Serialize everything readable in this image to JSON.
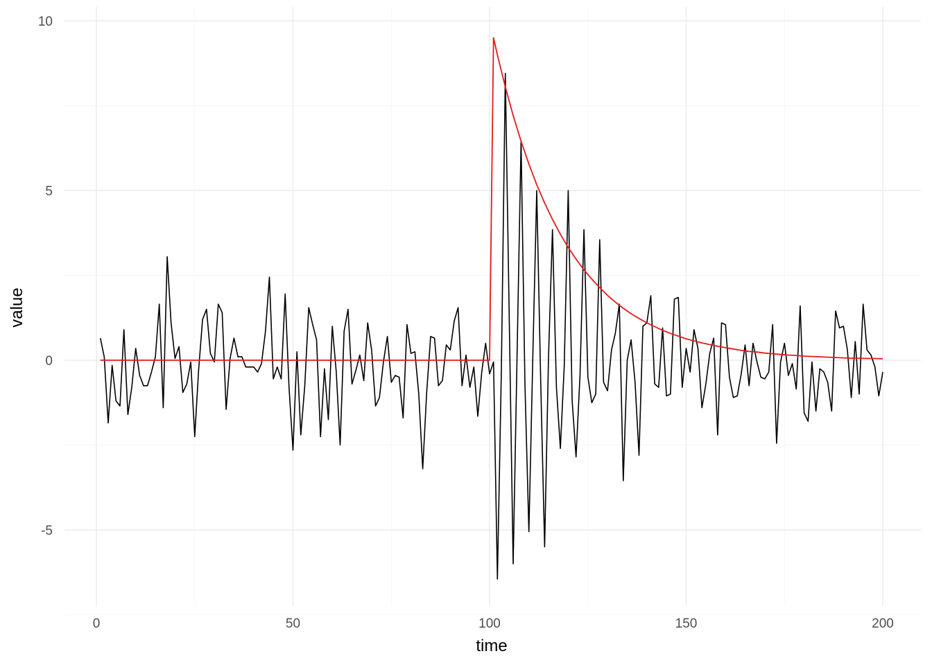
{
  "chart_data": {
    "type": "line",
    "title": "",
    "xlabel": "time",
    "ylabel": "value",
    "xlim": [
      -5,
      206
    ],
    "ylim": [
      -7.0,
      10.3
    ],
    "x_ticks": [
      0,
      50,
      100,
      150,
      200
    ],
    "y_ticks": [
      -5,
      0,
      5,
      10
    ],
    "x_minor_ticks": [
      25,
      75,
      125,
      175
    ],
    "y_minor_ticks": [
      -7.5,
      -2.5,
      2.5,
      7.5
    ],
    "grid": true,
    "legend": "none",
    "colors": {
      "noisy": "#000000",
      "decay": "#e41a1c"
    },
    "series": [
      {
        "color": "#000000",
        "x": [
          1,
          2,
          3,
          4,
          5,
          6,
          7,
          8,
          9,
          10,
          11,
          12,
          13,
          14,
          15,
          16,
          17,
          18,
          19,
          20,
          21,
          22,
          23,
          24,
          25,
          26,
          27,
          28,
          29,
          30,
          31,
          32,
          33,
          34,
          35,
          36,
          37,
          38,
          39,
          40,
          41,
          42,
          43,
          44,
          45,
          46,
          47,
          48,
          49,
          50,
          51,
          52,
          53,
          54,
          55,
          56,
          57,
          58,
          59,
          60,
          61,
          62,
          63,
          64,
          65,
          66,
          67,
          68,
          69,
          70,
          71,
          72,
          73,
          74,
          75,
          76,
          77,
          78,
          79,
          80,
          81,
          82,
          83,
          84,
          85,
          86,
          87,
          88,
          89,
          90,
          91,
          92,
          93,
          94,
          95,
          96,
          97,
          98,
          99,
          100,
          101,
          102,
          103,
          104,
          105,
          106,
          107,
          108,
          109,
          110,
          111,
          112,
          113,
          114,
          115,
          116,
          117,
          118,
          119,
          120,
          121,
          122,
          123,
          124,
          125,
          126,
          127,
          128,
          129,
          130,
          131,
          132,
          133,
          134,
          135,
          136,
          137,
          138,
          139,
          140,
          141,
          142,
          143,
          144,
          145,
          146,
          147,
          148,
          149,
          150,
          151,
          152,
          153,
          154,
          155,
          156,
          157,
          158,
          159,
          160,
          161,
          162,
          163,
          164,
          165,
          166,
          167,
          168,
          169,
          170,
          171,
          172,
          173,
          174,
          175,
          176,
          177,
          178,
          179,
          180,
          181,
          182,
          183,
          184,
          185,
          186,
          187,
          188,
          189,
          190,
          191,
          192,
          193,
          194,
          195,
          196,
          197,
          198,
          199,
          200
        ],
        "values": [
          0.65,
          0.1,
          -1.85,
          -0.15,
          -1.2,
          -1.35,
          0.9,
          -1.6,
          -0.8,
          0.35,
          -0.45,
          -0.75,
          -0.75,
          -0.35,
          0.1,
          1.65,
          -1.4,
          3.05,
          1.1,
          0.05,
          0.4,
          -0.95,
          -0.7,
          -0.05,
          -2.25,
          -0.3,
          1.2,
          1.5,
          0.2,
          -0.05,
          1.65,
          1.4,
          -1.45,
          0.05,
          0.65,
          0.1,
          0.1,
          -0.2,
          -0.2,
          -0.2,
          -0.35,
          -0.1,
          0.85,
          2.45,
          -0.55,
          -0.2,
          -0.55,
          1.95,
          -0.8,
          -2.65,
          0.25,
          -2.2,
          -0.75,
          1.55,
          1.05,
          0.6,
          -2.25,
          -0.25,
          -1.75,
          1.0,
          -0.35,
          -2.5,
          0.85,
          1.5,
          -0.7,
          -0.3,
          0.15,
          -0.6,
          1.1,
          0.3,
          -1.35,
          -1.1,
          -0.05,
          0.7,
          -0.65,
          -0.45,
          -0.5,
          -1.7,
          1.05,
          0.2,
          0.25,
          -1.0,
          -3.2,
          -0.95,
          0.7,
          0.65,
          -0.75,
          -0.6,
          0.45,
          0.3,
          1.15,
          1.55,
          -0.75,
          0.15,
          -0.8,
          -0.2,
          -1.65,
          -0.35,
          0.5,
          -0.4,
          -0.05,
          -6.45,
          -0.3,
          8.45,
          1.2,
          -6.0,
          0.2,
          6.45,
          -0.7,
          -5.05,
          0.15,
          5.0,
          -0.6,
          -5.5,
          0.1,
          3.85,
          -0.8,
          -2.6,
          -0.15,
          5.0,
          -1.2,
          -2.85,
          -0.45,
          3.85,
          -0.5,
          -1.25,
          -1.0,
          3.55,
          -0.65,
          -0.9,
          0.3,
          0.8,
          1.65,
          -3.55,
          0.0,
          0.6,
          -0.65,
          -2.8,
          1.0,
          1.1,
          1.9,
          -0.7,
          -0.8,
          0.95,
          -1.05,
          -1.0,
          1.8,
          1.85,
          -0.8,
          0.35,
          -0.35,
          0.9,
          0.35,
          -1.4,
          -0.7,
          0.2,
          0.65,
          -2.2,
          1.1,
          1.05,
          -0.5,
          -1.1,
          -1.05,
          -0.4,
          0.45,
          -0.75,
          0.5,
          -0.05,
          -0.5,
          -0.55,
          -0.35,
          1.05,
          -2.45,
          -0.05,
          0.5,
          -0.45,
          -0.1,
          -0.85,
          1.6,
          -1.55,
          -1.8,
          -0.05,
          -1.5,
          -0.25,
          -0.35,
          -0.65,
          -1.5,
          1.45,
          0.95,
          1.0,
          0.3,
          -1.1,
          0.55,
          -1.0,
          1.65,
          0.3,
          0.15,
          -0.2,
          -1.05,
          -0.35
        ]
      },
      {
        "color": "#e41a1c",
        "x": [
          1,
          100,
          101,
          102,
          104,
          106,
          108,
          110,
          112,
          114,
          116,
          118,
          120,
          122,
          124,
          126,
          128,
          130,
          132,
          134,
          136,
          138,
          140,
          142,
          144,
          146,
          148,
          150,
          152,
          154,
          156,
          158,
          160,
          162,
          164,
          166,
          168,
          170,
          172,
          174,
          176,
          178,
          180,
          182,
          184,
          186,
          188,
          190,
          192,
          194,
          196,
          198,
          200
        ],
        "values": [
          0,
          0,
          9.5,
          8.99,
          8.05,
          7.21,
          6.45,
          5.78,
          5.17,
          4.63,
          4.15,
          3.71,
          3.32,
          2.98,
          2.66,
          2.39,
          2.14,
          1.91,
          1.71,
          1.53,
          1.37,
          1.23,
          1.1,
          0.99,
          0.88,
          0.79,
          0.71,
          0.63,
          0.57,
          0.51,
          0.46,
          0.41,
          0.37,
          0.33,
          0.29,
          0.26,
          0.24,
          0.21,
          0.19,
          0.17,
          0.15,
          0.14,
          0.12,
          0.11,
          0.1,
          0.09,
          0.08,
          0.07,
          0.06,
          0.06,
          0.05,
          0.05,
          0.04
        ]
      }
    ]
  }
}
